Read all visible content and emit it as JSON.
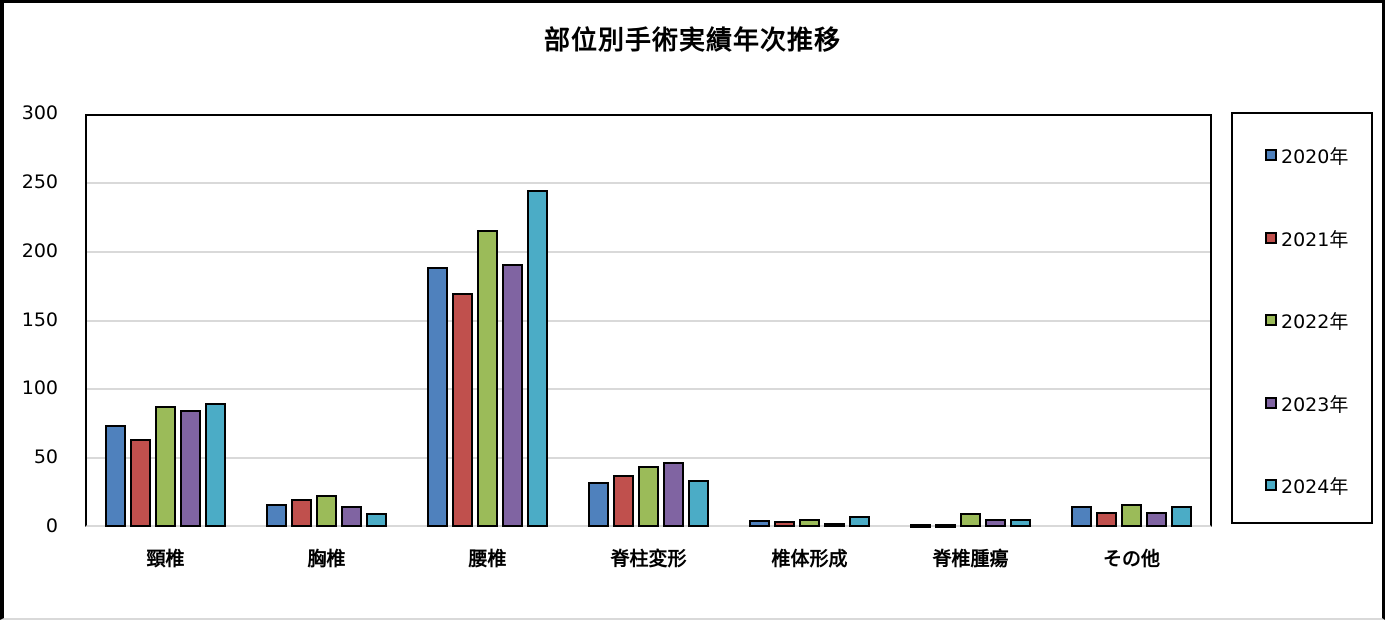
{
  "chart_data": {
    "type": "bar",
    "title": "部位別手術実績年次推移",
    "xlabel": "",
    "ylabel": "",
    "ylim": [
      0,
      300
    ],
    "yticks": [
      0,
      50,
      100,
      150,
      200,
      250,
      300
    ],
    "grid": true,
    "legend_position": "right",
    "categories": [
      "頸椎",
      "胸椎",
      "腰椎",
      "脊柱変形",
      "椎体形成",
      "脊椎腫瘍",
      "その他"
    ],
    "series": [
      {
        "name": "2020年",
        "color": "#4F81BD",
        "values": [
          74,
          17,
          189,
          33,
          5,
          2,
          15
        ]
      },
      {
        "name": "2021年",
        "color": "#C0504D",
        "values": [
          64,
          20,
          170,
          38,
          4,
          2,
          11
        ]
      },
      {
        "name": "2022年",
        "color": "#9BBB59",
        "values": [
          88,
          23,
          216,
          44,
          6,
          10,
          17
        ]
      },
      {
        "name": "2023年",
        "color": "#8064A2",
        "values": [
          85,
          15,
          191,
          47,
          3,
          6,
          11
        ]
      },
      {
        "name": "2024年",
        "color": "#4BACC6",
        "values": [
          90,
          10,
          245,
          34,
          8,
          6,
          15
        ]
      }
    ]
  }
}
